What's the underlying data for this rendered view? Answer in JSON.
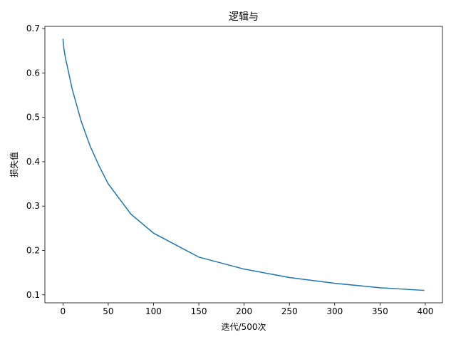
{
  "chart_data": {
    "type": "line",
    "title": "逻辑与",
    "xlabel": "迭代/500次",
    "ylabel": "损失值",
    "x": [
      0,
      1,
      2,
      3,
      5,
      10,
      20,
      30,
      40,
      50,
      75,
      100,
      150,
      200,
      250,
      300,
      350,
      399
    ],
    "series": [
      {
        "name": "loss",
        "color": "#1f77b4",
        "values": [
          0.677,
          0.655,
          0.643,
          0.631,
          0.613,
          0.565,
          0.492,
          0.435,
          0.39,
          0.35,
          0.282,
          0.239,
          0.185,
          0.158,
          0.139,
          0.126,
          0.116,
          0.11
        ]
      }
    ],
    "xlim": [
      -19.95,
      418.95
    ],
    "xticks": [
      0,
      50,
      100,
      150,
      200,
      250,
      300,
      350,
      400
    ],
    "ylim": [
      0.082,
      0.705
    ],
    "yticks": [
      0.1,
      0.2,
      0.3,
      0.4,
      0.5,
      0.6,
      0.7
    ]
  }
}
